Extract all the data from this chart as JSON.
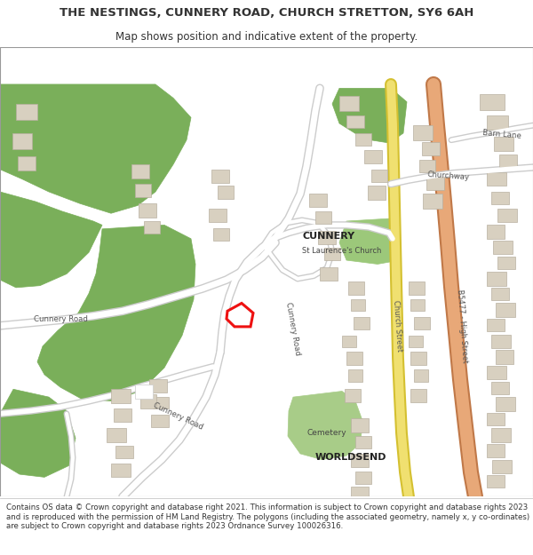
{
  "title_line1": "THE NESTINGS, CUNNERY ROAD, CHURCH STRETTON, SY6 6AH",
  "title_line2": "Map shows position and indicative extent of the property.",
  "footer": "Contains OS data © Crown copyright and database right 2021. This information is subject to Crown copyright and database rights 2023 and is reproduced with the permission of HM Land Registry. The polygons (including the associated geometry, namely x, y co-ordinates) are subject to Crown copyright and database rights 2023 Ordnance Survey 100026316.",
  "background_color": "#ffffff",
  "map_background": "#f5f5f0",
  "green_color": "#7aaf5a",
  "road_yellow": "#f0e070",
  "road_yellow_edge": "#d4c030",
  "road_orange": "#e8a878",
  "road_orange_edge": "#c07848",
  "road_white": "#ffffff",
  "road_outline": "#cccccc",
  "building_color": "#d8d0c0",
  "building_edge": "#b8b0a0",
  "church_green": "#9cc87a",
  "cemetery_green": "#a8cc88",
  "plot_color": "#ee1111",
  "text_color": "#333333",
  "label_color": "#444444",
  "title_fontsize": 9.5,
  "subtitle_fontsize": 8.5,
  "footer_fontsize": 6.2,
  "map_label_size": 6.5,
  "map_bold_size": 8.0
}
